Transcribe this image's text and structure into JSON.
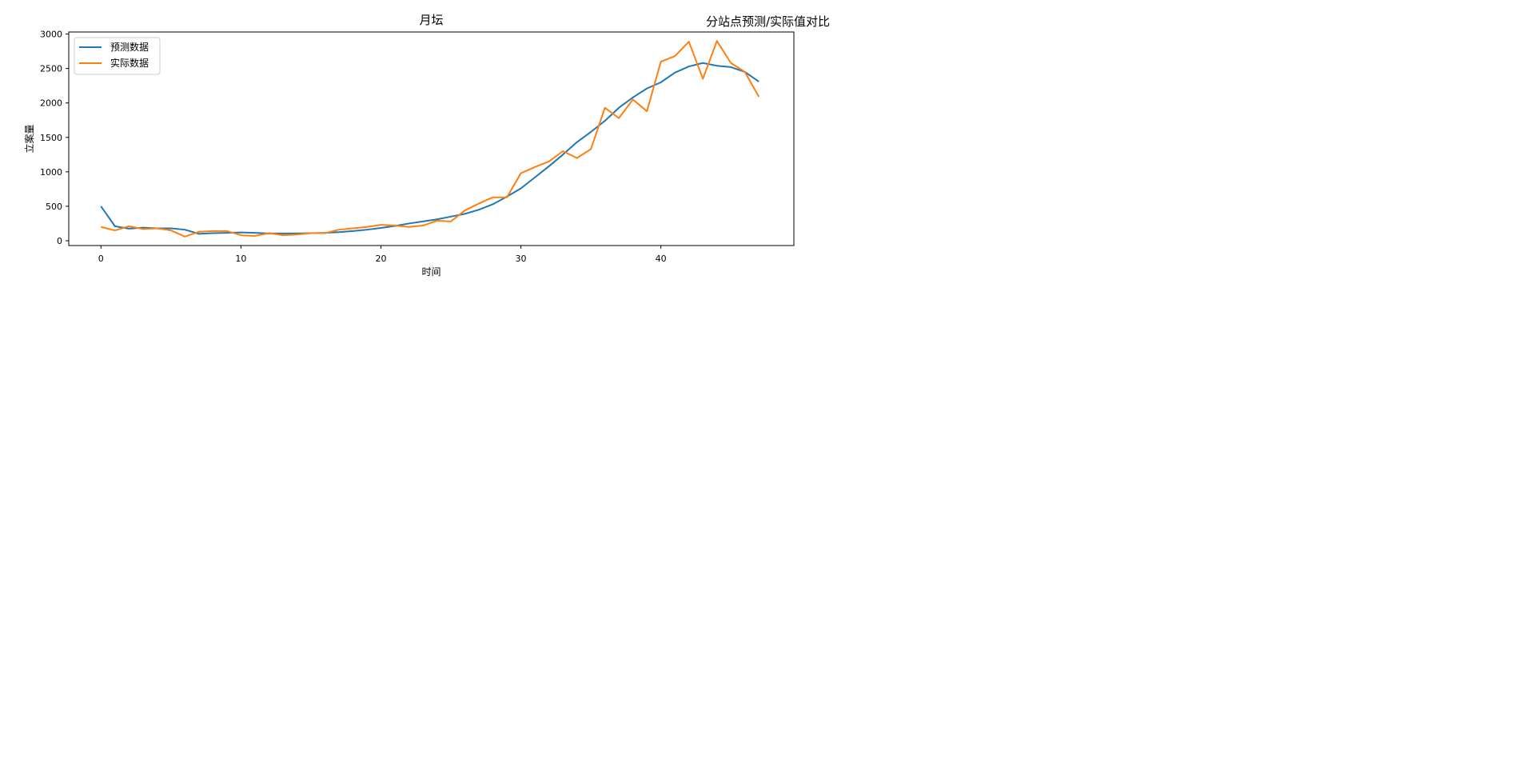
{
  "figure": {
    "suptitle": "分站点预测/实际值对比"
  },
  "chart_data": {
    "type": "line",
    "title": "月坛",
    "xlabel": "时间",
    "ylabel": "立案量",
    "xlim": [
      -2.3,
      49.5
    ],
    "ylim": [
      -70,
      3030
    ],
    "xticks": [
      0,
      10,
      20,
      30,
      40
    ],
    "yticks": [
      0,
      500,
      1000,
      1500,
      2000,
      2500,
      3000
    ],
    "legend_position": "upper-left",
    "grid": false,
    "x": [
      0,
      1,
      2,
      3,
      4,
      5,
      6,
      7,
      8,
      9,
      10,
      11,
      12,
      13,
      14,
      15,
      16,
      17,
      18,
      19,
      20,
      21,
      22,
      23,
      24,
      25,
      26,
      27,
      28,
      29,
      30,
      31,
      32,
      33,
      34,
      35,
      36,
      37,
      38,
      39,
      40,
      41,
      42,
      43,
      44,
      45,
      46,
      47
    ],
    "series": [
      {
        "name": "预测数据",
        "color": "#1f77b4",
        "values": [
          500,
          210,
          175,
          190,
          180,
          180,
          160,
          100,
          110,
          115,
          120,
          115,
          105,
          105,
          105,
          110,
          115,
          125,
          140,
          160,
          185,
          215,
          250,
          280,
          310,
          350,
          390,
          450,
          530,
          640,
          760,
          920,
          1080,
          1250,
          1430,
          1580,
          1740,
          1930,
          2080,
          2210,
          2300,
          2440,
          2530,
          2580,
          2540,
          2520,
          2450,
          2310
        ]
      },
      {
        "name": "实际数据",
        "color": "#ff7f0e",
        "values": [
          200,
          150,
          210,
          170,
          180,
          150,
          60,
          130,
          140,
          140,
          80,
          70,
          110,
          80,
          90,
          110,
          110,
          160,
          180,
          200,
          230,
          220,
          200,
          220,
          290,
          280,
          440,
          540,
          630,
          630,
          980,
          1070,
          1150,
          1300,
          1200,
          1330,
          1930,
          1780,
          2050,
          1880,
          2600,
          2680,
          2890,
          2350,
          2900,
          2580,
          2450,
          2090
        ]
      }
    ]
  }
}
